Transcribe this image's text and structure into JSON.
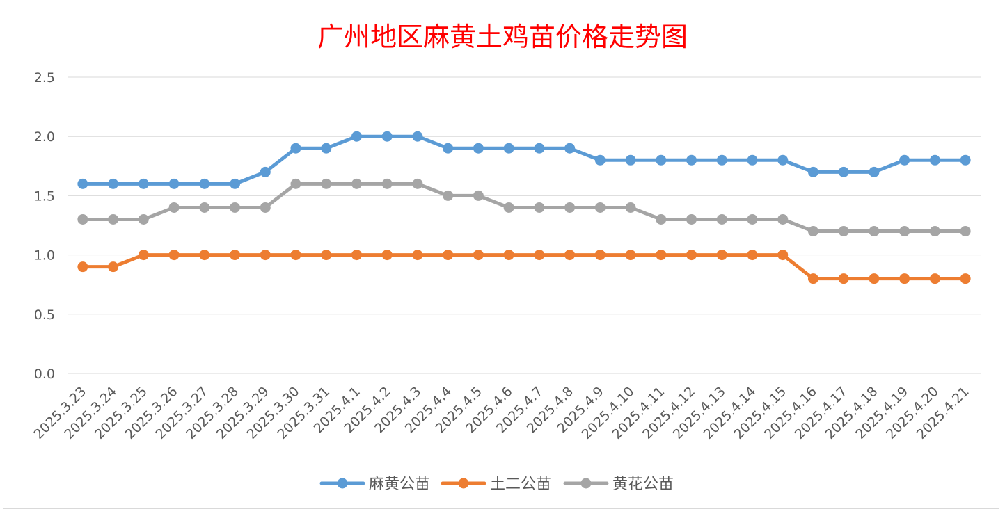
{
  "chart_data": {
    "type": "line",
    "title": "广州地区麻黄土鸡苗价格走势图",
    "xlabel": "",
    "ylabel": "",
    "ylim": [
      0,
      2.5
    ],
    "yticks": [
      "0.0",
      "0.5",
      "1.0",
      "1.5",
      "2.0",
      "2.5"
    ],
    "grid": true,
    "legend_position": "bottom",
    "categories": [
      "2025.3.23",
      "2025.3.24",
      "2025.3.25",
      "2025.3.26",
      "2025.3.27",
      "2025.3.28",
      "2025.3.29",
      "2025.3.30",
      "2025.3.31",
      "2025.4.1",
      "2025.4.2",
      "2025.4.3",
      "2025.4.4",
      "2025.4.5",
      "2025.4.6",
      "2025.4.7",
      "2025.4.8",
      "2025.4.9",
      "2025.4.10",
      "2025.4.11",
      "2025.4.12",
      "2025.4.13",
      "2025.4.14",
      "2025.4.15",
      "2025.4.16",
      "2025.4.17",
      "2025.4.18",
      "2025.4.19",
      "2025.4.20",
      "2025.4.21"
    ],
    "series": [
      {
        "name": "麻黄公苗",
        "color": "#5b9bd5",
        "values": [
          1.6,
          1.6,
          1.6,
          1.6,
          1.6,
          1.6,
          1.7,
          1.9,
          1.9,
          2.0,
          2.0,
          2.0,
          1.9,
          1.9,
          1.9,
          1.9,
          1.9,
          1.8,
          1.8,
          1.8,
          1.8,
          1.8,
          1.8,
          1.8,
          1.7,
          1.7,
          1.7,
          1.8,
          1.8,
          1.8
        ]
      },
      {
        "name": "土二公苗",
        "color": "#ed7d31",
        "values": [
          0.9,
          0.9,
          1.0,
          1.0,
          1.0,
          1.0,
          1.0,
          1.0,
          1.0,
          1.0,
          1.0,
          1.0,
          1.0,
          1.0,
          1.0,
          1.0,
          1.0,
          1.0,
          1.0,
          1.0,
          1.0,
          1.0,
          1.0,
          1.0,
          0.8,
          0.8,
          0.8,
          0.8,
          0.8,
          0.8
        ]
      },
      {
        "name": "黄花公苗",
        "color": "#a5a5a5",
        "values": [
          1.3,
          1.3,
          1.3,
          1.4,
          1.4,
          1.4,
          1.4,
          1.6,
          1.6,
          1.6,
          1.6,
          1.6,
          1.5,
          1.5,
          1.4,
          1.4,
          1.4,
          1.4,
          1.4,
          1.3,
          1.3,
          1.3,
          1.3,
          1.3,
          1.2,
          1.2,
          1.2,
          1.2,
          1.2,
          1.2
        ]
      }
    ]
  }
}
